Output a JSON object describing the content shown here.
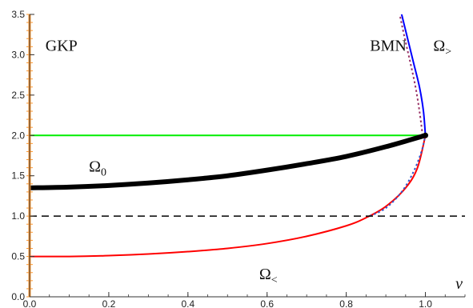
{
  "chart_data": {
    "type": "line",
    "title": "",
    "xlabel": "v",
    "ylabel": "",
    "xlim": [
      0,
      1.1
    ],
    "ylim": [
      0,
      3.5
    ],
    "x_ticks": [
      "0.0",
      "0.2",
      "0.4",
      "0.6",
      "0.8",
      "1.0"
    ],
    "y_ticks": [
      "0.0",
      "0.5",
      "1.0",
      "1.5",
      "2.0",
      "2.5",
      "3.0",
      "3.5"
    ],
    "grid": false,
    "legend": "none",
    "series": [
      {
        "name": "Ω0",
        "color": "#000000",
        "style": "solid-thick",
        "x": [
          0.0,
          0.1,
          0.2,
          0.3,
          0.4,
          0.5,
          0.6,
          0.7,
          0.8,
          0.9,
          1.0
        ],
        "y": [
          1.35,
          1.36,
          1.38,
          1.41,
          1.45,
          1.5,
          1.57,
          1.65,
          1.74,
          1.86,
          2.0
        ]
      },
      {
        "name": "Ω<",
        "color": "#ff0000",
        "style": "solid",
        "x": [
          0.0,
          0.1,
          0.2,
          0.3,
          0.4,
          0.5,
          0.6,
          0.7,
          0.8,
          0.85,
          0.9,
          0.95,
          0.98,
          1.0
        ],
        "y": [
          0.5,
          0.5,
          0.51,
          0.53,
          0.56,
          0.6,
          0.66,
          0.75,
          0.88,
          0.98,
          1.12,
          1.35,
          1.6,
          2.0
        ]
      },
      {
        "name": "Ω>",
        "color": "#0000ff",
        "style": "solid",
        "x": [
          1.0,
          0.995,
          0.985,
          0.97,
          0.955,
          0.94
        ],
        "y": [
          2.0,
          2.3,
          2.6,
          2.9,
          3.2,
          3.5
        ]
      },
      {
        "name": "",
        "color": "#3355cc",
        "style": "dotted",
        "x": [
          0.86,
          0.9,
          0.94,
          0.97,
          0.99,
          1.0
        ],
        "y": [
          1.0,
          1.1,
          1.3,
          1.55,
          1.8,
          2.0
        ]
      },
      {
        "name": "",
        "color": "#993366",
        "style": "dotted",
        "x": [
          0.993,
          0.985,
          0.975,
          0.962,
          0.948,
          0.935
        ],
        "y": [
          2.0,
          2.3,
          2.6,
          2.9,
          3.2,
          3.5
        ]
      },
      {
        "name": "",
        "color": "#00ee00",
        "style": "solid",
        "x": [
          0.0,
          1.0
        ],
        "y": [
          2.0,
          2.0
        ]
      },
      {
        "name": "",
        "color": "#000000",
        "style": "dashed",
        "x": [
          0.0,
          1.1
        ],
        "y": [
          1.0,
          1.0
        ]
      },
      {
        "name": "",
        "color": "#ff9933",
        "style": "orange-band",
        "x": [
          0.0,
          0.0
        ],
        "y": [
          0.0,
          3.5
        ]
      }
    ],
    "annotations": [
      {
        "text": "GKP",
        "x": 0.04,
        "y": 3.05,
        "size": "large"
      },
      {
        "text": "BMN",
        "x": 0.86,
        "y": 3.05,
        "size": "large"
      },
      {
        "text": "Ω",
        "sub": ">",
        "x": 1.02,
        "y": 3.05,
        "size": "large"
      },
      {
        "text": "Ω",
        "sub": "0",
        "x": 0.15,
        "y": 1.55,
        "size": "large"
      },
      {
        "text": "Ω",
        "sub": "<",
        "x": 0.58,
        "y": 0.22,
        "size": "large"
      }
    ],
    "points": [
      {
        "x": 1.0,
        "y": 2.0,
        "color": "#000000"
      }
    ]
  }
}
